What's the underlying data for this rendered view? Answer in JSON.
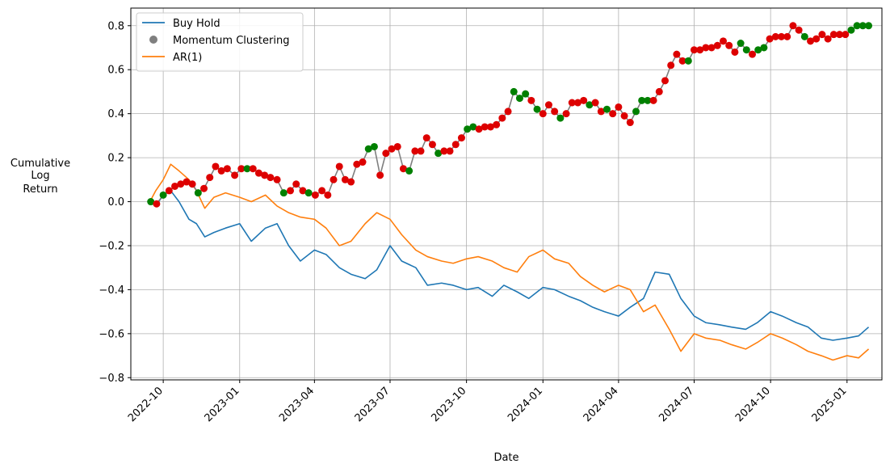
{
  "chart_data": {
    "type": "line",
    "title": "",
    "xlabel": "Date",
    "ylabel_lines": [
      "Cumulative",
      "Log",
      "Return"
    ],
    "x_range": [
      "2022-08-23",
      "2025-02-12"
    ],
    "ylim": [
      -0.81,
      0.88
    ],
    "grid": true,
    "legend_placement": "top-left",
    "x_ticks": [
      "2022-10",
      "2023-01",
      "2023-04",
      "2023-07",
      "2023-10",
      "2024-01",
      "2024-04",
      "2024-07",
      "2024-10",
      "2025-01"
    ],
    "y_ticks": [
      -0.8,
      -0.6,
      -0.4,
      -0.2,
      0.0,
      0.2,
      0.4,
      0.6,
      0.8
    ],
    "y_tick_labels": [
      "−0.8",
      "−0.6",
      "−0.4",
      "−0.2",
      "0.0",
      "0.2",
      "0.4",
      "0.6",
      "0.8"
    ],
    "series": [
      {
        "name": "Buy Hold",
        "color": "#1f77b4",
        "kind": "line",
        "x": [
          "2022-09-15",
          "2022-09-22",
          "2022-10-01",
          "2022-10-10",
          "2022-10-20",
          "2022-11-01",
          "2022-11-10",
          "2022-11-20",
          "2022-12-01",
          "2022-12-15",
          "2023-01-01",
          "2023-01-15",
          "2023-02-01",
          "2023-02-15",
          "2023-03-01",
          "2023-03-15",
          "2023-04-01",
          "2023-04-15",
          "2023-05-01",
          "2023-05-15",
          "2023-06-01",
          "2023-06-15",
          "2023-07-01",
          "2023-07-15",
          "2023-08-01",
          "2023-08-15",
          "2023-09-01",
          "2023-09-15",
          "2023-10-01",
          "2023-10-15",
          "2023-11-01",
          "2023-11-15",
          "2023-12-01",
          "2023-12-15",
          "2024-01-01",
          "2024-01-15",
          "2024-02-01",
          "2024-02-15",
          "2024-03-01",
          "2024-03-15",
          "2024-04-01",
          "2024-04-15",
          "2024-05-01",
          "2024-05-15",
          "2024-06-01",
          "2024-06-15",
          "2024-07-01",
          "2024-07-15",
          "2024-08-01",
          "2024-08-15",
          "2024-09-01",
          "2024-09-15",
          "2024-10-01",
          "2024-10-15",
          "2024-11-01",
          "2024-11-15",
          "2024-12-01",
          "2024-12-15",
          "2025-01-01",
          "2025-01-15",
          "2025-01-27"
        ],
        "y": [
          0.0,
          -0.02,
          0.03,
          0.05,
          0.0,
          -0.08,
          -0.1,
          -0.16,
          -0.14,
          -0.12,
          -0.1,
          -0.18,
          -0.12,
          -0.1,
          -0.2,
          -0.27,
          -0.22,
          -0.24,
          -0.3,
          -0.33,
          -0.35,
          -0.31,
          -0.2,
          -0.27,
          -0.3,
          -0.38,
          -0.37,
          -0.38,
          -0.4,
          -0.39,
          -0.43,
          -0.38,
          -0.41,
          -0.44,
          -0.39,
          -0.4,
          -0.43,
          -0.45,
          -0.48,
          -0.5,
          -0.52,
          -0.48,
          -0.44,
          -0.32,
          -0.33,
          -0.44,
          -0.52,
          -0.55,
          -0.56,
          -0.57,
          -0.58,
          -0.55,
          -0.5,
          -0.52,
          -0.55,
          -0.57,
          -0.62,
          -0.63,
          -0.62,
          -0.61,
          -0.57
        ]
      },
      {
        "name": "AR(1)",
        "color": "#ff7f0e",
        "kind": "line",
        "x": [
          "2022-09-15",
          "2022-09-22",
          "2022-10-01",
          "2022-10-10",
          "2022-10-20",
          "2022-11-01",
          "2022-11-10",
          "2022-11-20",
          "2022-12-01",
          "2022-12-15",
          "2023-01-01",
          "2023-01-15",
          "2023-02-01",
          "2023-02-15",
          "2023-03-01",
          "2023-03-15",
          "2023-04-01",
          "2023-04-15",
          "2023-05-01",
          "2023-05-15",
          "2023-06-01",
          "2023-06-15",
          "2023-07-01",
          "2023-07-15",
          "2023-08-01",
          "2023-08-15",
          "2023-09-01",
          "2023-09-15",
          "2023-10-01",
          "2023-10-15",
          "2023-11-01",
          "2023-11-15",
          "2023-12-01",
          "2023-12-15",
          "2024-01-01",
          "2024-01-15",
          "2024-02-01",
          "2024-02-15",
          "2024-03-01",
          "2024-03-15",
          "2024-04-01",
          "2024-04-15",
          "2024-05-01",
          "2024-05-15",
          "2024-06-01",
          "2024-06-15",
          "2024-07-01",
          "2024-07-15",
          "2024-08-01",
          "2024-08-15",
          "2024-09-01",
          "2024-09-15",
          "2024-10-01",
          "2024-10-15",
          "2024-11-01",
          "2024-11-15",
          "2024-12-01",
          "2024-12-15",
          "2025-01-01",
          "2025-01-15",
          "2025-01-27"
        ],
        "y": [
          0.0,
          0.05,
          0.1,
          0.17,
          0.14,
          0.1,
          0.05,
          -0.03,
          0.02,
          0.04,
          0.02,
          0.0,
          0.03,
          -0.02,
          -0.05,
          -0.07,
          -0.08,
          -0.12,
          -0.2,
          -0.18,
          -0.1,
          -0.05,
          -0.08,
          -0.15,
          -0.22,
          -0.25,
          -0.27,
          -0.28,
          -0.26,
          -0.25,
          -0.27,
          -0.3,
          -0.32,
          -0.25,
          -0.22,
          -0.26,
          -0.28,
          -0.34,
          -0.38,
          -0.41,
          -0.38,
          -0.4,
          -0.5,
          -0.47,
          -0.58,
          -0.68,
          -0.6,
          -0.62,
          -0.63,
          -0.65,
          -0.67,
          -0.64,
          -0.6,
          -0.62,
          -0.65,
          -0.68,
          -0.7,
          -0.72,
          -0.7,
          -0.71,
          -0.67
        ]
      },
      {
        "name": "Momentum Clustering",
        "color": "#7f7f7f",
        "kind": "scatter-line",
        "point_colors": {
          "up": "#008000",
          "down": "#dd0000"
        },
        "x": [
          "2022-09-16",
          "2022-09-23",
          "2022-10-01",
          "2022-10-08",
          "2022-10-15",
          "2022-10-22",
          "2022-10-29",
          "2022-11-05",
          "2022-11-12",
          "2022-11-19",
          "2022-11-26",
          "2022-12-03",
          "2022-12-10",
          "2022-12-17",
          "2022-12-26",
          "2023-01-03",
          "2023-01-10",
          "2023-01-17",
          "2023-01-24",
          "2023-01-31",
          "2023-02-07",
          "2023-02-15",
          "2023-02-23",
          "2023-03-03",
          "2023-03-10",
          "2023-03-18",
          "2023-03-25",
          "2023-04-02",
          "2023-04-10",
          "2023-04-17",
          "2023-04-24",
          "2023-05-01",
          "2023-05-08",
          "2023-05-15",
          "2023-05-22",
          "2023-05-29",
          "2023-06-05",
          "2023-06-12",
          "2023-06-19",
          "2023-06-26",
          "2023-07-03",
          "2023-07-10",
          "2023-07-17",
          "2023-07-24",
          "2023-07-31",
          "2023-08-07",
          "2023-08-14",
          "2023-08-21",
          "2023-08-28",
          "2023-09-04",
          "2023-09-11",
          "2023-09-18",
          "2023-09-25",
          "2023-10-02",
          "2023-10-09",
          "2023-10-16",
          "2023-10-23",
          "2023-10-30",
          "2023-11-06",
          "2023-11-13",
          "2023-11-20",
          "2023-11-27",
          "2023-12-04",
          "2023-12-11",
          "2023-12-18",
          "2023-12-25",
          "2024-01-01",
          "2024-01-08",
          "2024-01-15",
          "2024-01-22",
          "2024-01-29",
          "2024-02-05",
          "2024-02-12",
          "2024-02-19",
          "2024-02-26",
          "2024-03-04",
          "2024-03-11",
          "2024-03-18",
          "2024-03-25",
          "2024-04-01",
          "2024-04-08",
          "2024-04-15",
          "2024-04-22",
          "2024-04-29",
          "2024-05-06",
          "2024-05-13",
          "2024-05-20",
          "2024-05-27",
          "2024-06-03",
          "2024-06-10",
          "2024-06-17",
          "2024-06-24",
          "2024-07-01",
          "2024-07-08",
          "2024-07-15",
          "2024-07-22",
          "2024-07-29",
          "2024-08-05",
          "2024-08-12",
          "2024-08-19",
          "2024-08-26",
          "2024-09-02",
          "2024-09-09",
          "2024-09-16",
          "2024-09-23",
          "2024-09-30",
          "2024-10-07",
          "2024-10-14",
          "2024-10-21",
          "2024-10-28",
          "2024-11-04",
          "2024-11-11",
          "2024-11-18",
          "2024-11-25",
          "2024-12-02",
          "2024-12-09",
          "2024-12-16",
          "2024-12-23",
          "2024-12-30",
          "2025-01-06",
          "2025-01-13",
          "2025-01-20",
          "2025-01-27"
        ],
        "y": [
          0.0,
          -0.01,
          0.03,
          0.05,
          0.07,
          0.08,
          0.09,
          0.08,
          0.04,
          0.06,
          0.11,
          0.16,
          0.14,
          0.15,
          0.12,
          0.15,
          0.15,
          0.15,
          0.13,
          0.12,
          0.11,
          0.1,
          0.04,
          0.05,
          0.08,
          0.05,
          0.04,
          0.03,
          0.05,
          0.03,
          0.1,
          0.16,
          0.1,
          0.09,
          0.17,
          0.18,
          0.24,
          0.25,
          0.12,
          0.22,
          0.24,
          0.25,
          0.15,
          0.14,
          0.23,
          0.23,
          0.29,
          0.26,
          0.22,
          0.23,
          0.23,
          0.26,
          0.29,
          0.33,
          0.34,
          0.33,
          0.34,
          0.34,
          0.35,
          0.38,
          0.41,
          0.5,
          0.47,
          0.49,
          0.46,
          0.42,
          0.4,
          0.44,
          0.41,
          0.38,
          0.4,
          0.45,
          0.45,
          0.46,
          0.44,
          0.45,
          0.41,
          0.42,
          0.4,
          0.43,
          0.39,
          0.36,
          0.41,
          0.46,
          0.46,
          0.46,
          0.5,
          0.55,
          0.62,
          0.67,
          0.64,
          0.64,
          0.69,
          0.69,
          0.7,
          0.7,
          0.71,
          0.73,
          0.71,
          0.68,
          0.72,
          0.69,
          0.67,
          0.69,
          0.7,
          0.74,
          0.75,
          0.75,
          0.75,
          0.8,
          0.78,
          0.75,
          0.73,
          0.74,
          0.76,
          0.74,
          0.76,
          0.76,
          0.76,
          0.78,
          0.8,
          0.8,
          0.8
        ],
        "states": [
          "up",
          "down",
          "up",
          "down",
          "down",
          "down",
          "down",
          "down",
          "up",
          "down",
          "down",
          "down",
          "down",
          "down",
          "down",
          "down",
          "up",
          "down",
          "down",
          "down",
          "down",
          "down",
          "up",
          "down",
          "down",
          "down",
          "up",
          "down",
          "down",
          "down",
          "down",
          "down",
          "down",
          "down",
          "down",
          "down",
          "up",
          "up",
          "down",
          "down",
          "down",
          "down",
          "down",
          "up",
          "down",
          "down",
          "down",
          "down",
          "up",
          "down",
          "down",
          "down",
          "down",
          "up",
          "up",
          "down",
          "down",
          "down",
          "down",
          "down",
          "down",
          "up",
          "up",
          "up",
          "down",
          "up",
          "down",
          "down",
          "down",
          "up",
          "down",
          "down",
          "down",
          "down",
          "up",
          "down",
          "down",
          "up",
          "down",
          "down",
          "down",
          "down",
          "up",
          "up",
          "up",
          "down",
          "down",
          "down",
          "down",
          "down",
          "down",
          "up",
          "down",
          "down",
          "down",
          "down",
          "down",
          "down",
          "down",
          "down",
          "up",
          "up",
          "down",
          "up",
          "up",
          "down",
          "down",
          "down",
          "down",
          "down",
          "down",
          "up",
          "down",
          "down",
          "down",
          "down",
          "down",
          "down",
          "down",
          "up",
          "up",
          "up",
          "up"
        ]
      }
    ]
  }
}
